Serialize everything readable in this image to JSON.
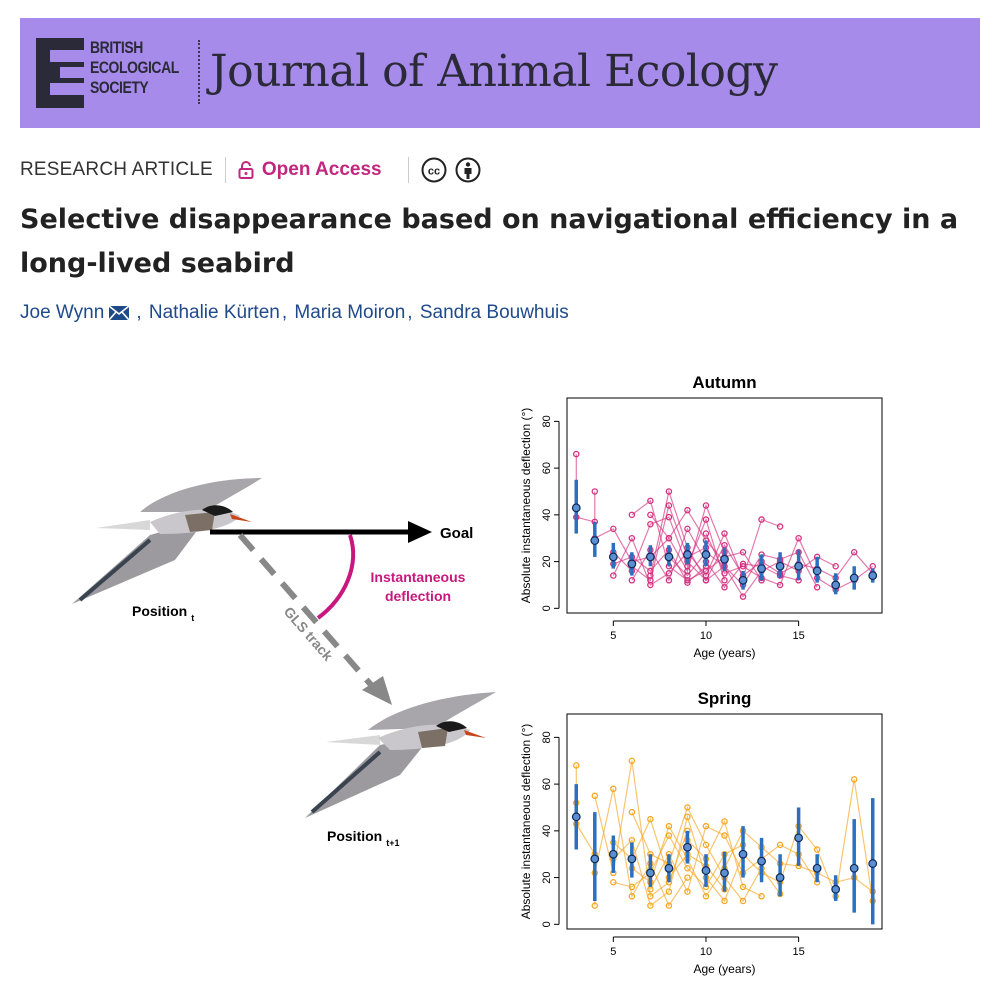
{
  "header": {
    "society": [
      "BRITISH",
      "ECOLOGICAL",
      "SOCIETY"
    ],
    "journal": "Journal of Animal Ecology",
    "banner_color": "#a78bea"
  },
  "meta": {
    "article_type": "RESEARCH ARTICLE",
    "access": "Open Access",
    "access_color": "#c2267f",
    "license_icons": [
      "cc-icon",
      "by-icon"
    ]
  },
  "article": {
    "title": "Selective disappearance based on navigational efficiency in a long-lived seabird",
    "authors": [
      "Joe Wynn",
      "Nathalie Kürten",
      "Maria Moiron",
      "Sandra Bouwhuis"
    ]
  },
  "diagram": {
    "goal": "Goal",
    "deflection_label": [
      "Instantaneous",
      "deflection"
    ],
    "track_label": "GLS track",
    "position_t": "Position",
    "position_t_sub": "t",
    "position_t1": "Position",
    "position_t1_sub": "t+1",
    "deflection_color": "#c8177f",
    "track_color": "#888888"
  },
  "chart_data": [
    {
      "type": "scatter",
      "title": "Autumn",
      "xlabel": "Age (years)",
      "ylabel": "Absolute instantaneous deflection (°)",
      "xlim": [
        2.5,
        19.5
      ],
      "ylim": [
        0,
        90
      ],
      "xticks": [
        5,
        10,
        15
      ],
      "yticks": [
        0,
        20,
        40,
        60,
        80
      ],
      "grid": false,
      "point_color": "#d4307f",
      "mean_color": "#2c6fbf",
      "means": [
        {
          "x": 3,
          "mean": 43,
          "lo": 32,
          "hi": 55
        },
        {
          "x": 4,
          "mean": 29,
          "lo": 22,
          "hi": 37
        },
        {
          "x": 5,
          "mean": 22,
          "lo": 17,
          "hi": 28
        },
        {
          "x": 6,
          "mean": 19,
          "lo": 14,
          "hi": 24
        },
        {
          "x": 7,
          "mean": 22,
          "lo": 18,
          "hi": 27
        },
        {
          "x": 8,
          "mean": 22,
          "lo": 18,
          "hi": 27
        },
        {
          "x": 9,
          "mean": 23,
          "lo": 19,
          "hi": 28
        },
        {
          "x": 10,
          "mean": 23,
          "lo": 18,
          "hi": 29
        },
        {
          "x": 11,
          "mean": 21,
          "lo": 16,
          "hi": 26
        },
        {
          "x": 12,
          "mean": 12,
          "lo": 8,
          "hi": 16
        },
        {
          "x": 13,
          "mean": 17,
          "lo": 12,
          "hi": 23
        },
        {
          "x": 14,
          "mean": 18,
          "lo": 13,
          "hi": 24
        },
        {
          "x": 15,
          "mean": 18,
          "lo": 12,
          "hi": 25
        },
        {
          "x": 16,
          "mean": 16,
          "lo": 11,
          "hi": 22
        },
        {
          "x": 17,
          "mean": 10,
          "lo": 6,
          "hi": 15
        },
        {
          "x": 18,
          "mean": 13,
          "lo": 8,
          "hi": 18
        },
        {
          "x": 19,
          "mean": 14,
          "lo": 11,
          "hi": 17
        }
      ],
      "individuals": [
        [
          [
            3,
            66
          ],
          [
            3,
            39
          ],
          [
            4,
            37
          ],
          [
            4,
            50
          ]
        ],
        [
          [
            4,
            30
          ],
          [
            5,
            34
          ],
          [
            6,
            20
          ],
          [
            7,
            22
          ],
          [
            8,
            30
          ],
          [
            9,
            42
          ],
          [
            10,
            29
          ],
          [
            11,
            20
          ]
        ],
        [
          [
            5,
            24
          ],
          [
            6,
            16
          ],
          [
            7,
            36
          ],
          [
            8,
            39
          ],
          [
            9,
            18
          ],
          [
            10,
            38
          ],
          [
            11,
            12
          ]
        ],
        [
          [
            5,
            14
          ],
          [
            6,
            30
          ],
          [
            7,
            10
          ],
          [
            8,
            15
          ],
          [
            9,
            24
          ],
          [
            10,
            14
          ],
          [
            11,
            32
          ],
          [
            12,
            13
          ],
          [
            13,
            38
          ],
          [
            14,
            35
          ]
        ],
        [
          [
            6,
            40
          ],
          [
            7,
            46
          ],
          [
            8,
            18
          ],
          [
            9,
            12
          ],
          [
            10,
            16
          ],
          [
            11,
            22
          ],
          [
            12,
            24
          ],
          [
            13,
            12
          ]
        ],
        [
          [
            6,
            12
          ],
          [
            7,
            25
          ],
          [
            8,
            12
          ],
          [
            9,
            34
          ],
          [
            10,
            20
          ],
          [
            11,
            9
          ],
          [
            12,
            19
          ],
          [
            13,
            18
          ],
          [
            14,
            14
          ],
          [
            15,
            12
          ]
        ],
        [
          [
            7,
            14
          ],
          [
            8,
            50
          ],
          [
            9,
            26
          ],
          [
            10,
            12
          ],
          [
            11,
            18
          ],
          [
            12,
            10
          ],
          [
            13,
            23
          ],
          [
            14,
            21
          ],
          [
            15,
            24
          ],
          [
            16,
            9
          ]
        ],
        [
          [
            8,
            22
          ],
          [
            9,
            14
          ],
          [
            10,
            24
          ],
          [
            11,
            18
          ],
          [
            12,
            5
          ],
          [
            13,
            16
          ],
          [
            14,
            20
          ],
          [
            15,
            16
          ],
          [
            16,
            22
          ],
          [
            17,
            18
          ]
        ],
        [
          [
            9,
            20
          ],
          [
            10,
            12
          ],
          [
            11,
            27
          ],
          [
            12,
            14
          ],
          [
            13,
            20
          ],
          [
            14,
            15
          ],
          [
            15,
            19
          ],
          [
            16,
            17
          ],
          [
            17,
            13
          ],
          [
            18,
            24
          ],
          [
            19,
            15
          ]
        ],
        [
          [
            10,
            32
          ],
          [
            11,
            15
          ],
          [
            12,
            18
          ],
          [
            13,
            13
          ],
          [
            14,
            10
          ],
          [
            15,
            30
          ],
          [
            16,
            13
          ],
          [
            17,
            8
          ],
          [
            18,
            12
          ],
          [
            19,
            18
          ]
        ],
        [
          [
            5,
            19
          ],
          [
            6,
            22
          ],
          [
            7,
            16
          ],
          [
            8,
            25
          ],
          [
            9,
            11
          ],
          [
            10,
            18
          ]
        ],
        [
          [
            6,
            18
          ],
          [
            7,
            12
          ],
          [
            8,
            44
          ],
          [
            9,
            22
          ],
          [
            10,
            26
          ]
        ],
        [
          [
            7,
            40
          ],
          [
            8,
            30
          ],
          [
            9,
            16
          ],
          [
            10,
            44
          ],
          [
            11,
            24
          ]
        ]
      ]
    },
    {
      "type": "scatter",
      "title": "Spring",
      "xlabel": "Age (years)",
      "ylabel": "Absolute instantaneous deflection (°)",
      "xlim": [
        2.5,
        19.5
      ],
      "ylim": [
        0,
        90
      ],
      "xticks": [
        5,
        10,
        15
      ],
      "yticks": [
        0,
        20,
        40,
        60,
        80
      ],
      "grid": false,
      "point_color": "#f5a623",
      "mean_color": "#2c6fbf",
      "means": [
        {
          "x": 3,
          "mean": 46,
          "lo": 32,
          "hi": 60
        },
        {
          "x": 4,
          "mean": 28,
          "lo": 10,
          "hi": 48
        },
        {
          "x": 5,
          "mean": 30,
          "lo": 22,
          "hi": 38
        },
        {
          "x": 6,
          "mean": 28,
          "lo": 20,
          "hi": 35
        },
        {
          "x": 7,
          "mean": 22,
          "lo": 16,
          "hi": 30
        },
        {
          "x": 8,
          "mean": 24,
          "lo": 18,
          "hi": 30
        },
        {
          "x": 9,
          "mean": 33,
          "lo": 26,
          "hi": 40
        },
        {
          "x": 10,
          "mean": 23,
          "lo": 16,
          "hi": 30
        },
        {
          "x": 11,
          "mean": 22,
          "lo": 14,
          "hi": 31
        },
        {
          "x": 12,
          "mean": 30,
          "lo": 20,
          "hi": 42
        },
        {
          "x": 13,
          "mean": 27,
          "lo": 18,
          "hi": 37
        },
        {
          "x": 14,
          "mean": 20,
          "lo": 12,
          "hi": 30
        },
        {
          "x": 15,
          "mean": 37,
          "lo": 25,
          "hi": 50
        },
        {
          "x": 16,
          "mean": 24,
          "lo": 18,
          "hi": 30
        },
        {
          "x": 17,
          "mean": 15,
          "lo": 10,
          "hi": 21
        },
        {
          "x": 18,
          "mean": 24,
          "lo": 5,
          "hi": 45
        },
        {
          "x": 19,
          "mean": 26,
          "lo": 0,
          "hi": 54
        }
      ],
      "individuals": [
        [
          [
            3,
            68
          ],
          [
            3,
            52
          ],
          [
            3,
            43
          ],
          [
            4,
            30
          ],
          [
            4,
            8
          ]
        ],
        [
          [
            4,
            55
          ],
          [
            5,
            22
          ],
          [
            6,
            70
          ],
          [
            7,
            12
          ],
          [
            8,
            18
          ],
          [
            9,
            40
          ]
        ],
        [
          [
            5,
            35
          ],
          [
            6,
            28
          ],
          [
            7,
            45
          ],
          [
            8,
            20
          ],
          [
            9,
            30
          ],
          [
            10,
            25
          ],
          [
            11,
            15
          ]
        ],
        [
          [
            5,
            18
          ],
          [
            6,
            16
          ],
          [
            7,
            22
          ],
          [
            8,
            38
          ],
          [
            9,
            24
          ],
          [
            10,
            16
          ],
          [
            11,
            30
          ],
          [
            12,
            34
          ]
        ],
        [
          [
            6,
            48
          ],
          [
            7,
            30
          ],
          [
            8,
            26
          ],
          [
            9,
            50
          ],
          [
            10,
            34
          ],
          [
            11,
            20
          ],
          [
            12,
            10
          ],
          [
            13,
            24
          ],
          [
            14,
            13
          ]
        ],
        [
          [
            7,
            15
          ],
          [
            8,
            30
          ],
          [
            9,
            14
          ],
          [
            10,
            42
          ],
          [
            11,
            38
          ],
          [
            12,
            22
          ],
          [
            13,
            28
          ],
          [
            14,
            34
          ],
          [
            15,
            30
          ],
          [
            16,
            18
          ]
        ],
        [
          [
            5,
            28
          ],
          [
            6,
            36
          ],
          [
            7,
            8
          ],
          [
            8,
            14
          ],
          [
            9,
            46
          ],
          [
            10,
            20
          ],
          [
            11,
            10
          ],
          [
            12,
            30
          ],
          [
            13,
            22
          ],
          [
            14,
            18
          ],
          [
            15,
            42
          ],
          [
            16,
            32
          ],
          [
            17,
            12
          ],
          [
            18,
            62
          ],
          [
            19,
            10
          ]
        ],
        [
          [
            6,
            24
          ],
          [
            7,
            18
          ],
          [
            8,
            42
          ],
          [
            9,
            28
          ],
          [
            10,
            12
          ],
          [
            11,
            24
          ],
          [
            12,
            40
          ],
          [
            13,
            33
          ],
          [
            14,
            26
          ],
          [
            15,
            25
          ],
          [
            16,
            22
          ],
          [
            17,
            18
          ],
          [
            18,
            20
          ],
          [
            19,
            14
          ]
        ],
        [
          [
            4,
            22
          ],
          [
            5,
            58
          ],
          [
            6,
            12
          ],
          [
            7,
            26
          ],
          [
            8,
            8
          ],
          [
            9,
            20
          ]
        ],
        [
          [
            9,
            36
          ],
          [
            10,
            28
          ],
          [
            11,
            44
          ],
          [
            12,
            16
          ],
          [
            13,
            12
          ]
        ]
      ]
    }
  ]
}
